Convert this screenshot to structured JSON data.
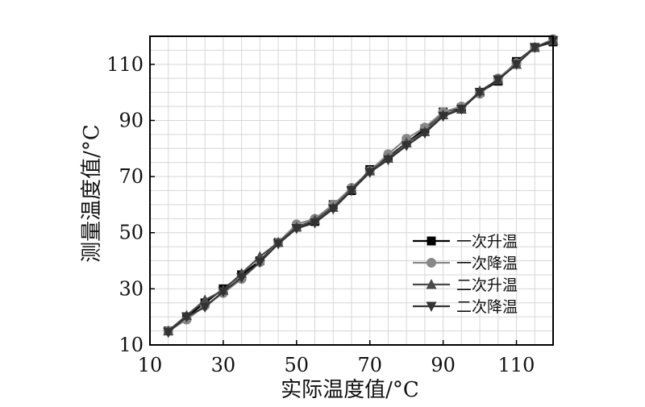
{
  "chart_data": {
    "type": "line",
    "xlabel": "实际温度值/°C",
    "ylabel": "测量温度值/°C",
    "xlim": [
      10,
      120
    ],
    "ylim": [
      10,
      120
    ],
    "x_ticks": [
      10,
      30,
      50,
      70,
      90,
      110
    ],
    "y_ticks": [
      10,
      30,
      50,
      70,
      90,
      110
    ],
    "grid": true,
    "legend_position": "bottom-right",
    "x": [
      15,
      20,
      25,
      30,
      35,
      40,
      45,
      50,
      55,
      60,
      65,
      70,
      75,
      80,
      85,
      90,
      95,
      100,
      105,
      110,
      115,
      120
    ],
    "series": [
      {
        "name": "一次升温",
        "marker": "square",
        "color": "#000000",
        "values": [
          15,
          20,
          25,
          30,
          35,
          40,
          46.5,
          52,
          54,
          60,
          65,
          72.5,
          77,
          82,
          87,
          93,
          94.5,
          100,
          104,
          111,
          116,
          118
        ]
      },
      {
        "name": "一次降温",
        "marker": "circle",
        "color": "#888888",
        "values": [
          15,
          19,
          24,
          28.5,
          33.5,
          39.5,
          46.5,
          53,
          55,
          60,
          66,
          72,
          78,
          83.5,
          87.5,
          93,
          95,
          99.5,
          105,
          110.5,
          116,
          119
        ]
      },
      {
        "name": "二次升温",
        "marker": "triangle-up",
        "color": "#4a4a4a",
        "values": [
          15,
          20.5,
          26,
          29.5,
          35.5,
          41.5,
          46.5,
          52,
          54.5,
          59,
          65.5,
          72,
          76.5,
          82,
          86,
          92,
          94,
          100.5,
          104.5,
          110,
          116,
          118.5
        ]
      },
      {
        "name": "二次降温",
        "marker": "triangle-down",
        "color": "#333333",
        "values": [
          14.5,
          20,
          23.5,
          29,
          34,
          39.5,
          46,
          51.5,
          53.5,
          58.5,
          65,
          71.5,
          76,
          81,
          85.5,
          91.5,
          94,
          100,
          104.5,
          110,
          116,
          118.5
        ]
      }
    ]
  }
}
